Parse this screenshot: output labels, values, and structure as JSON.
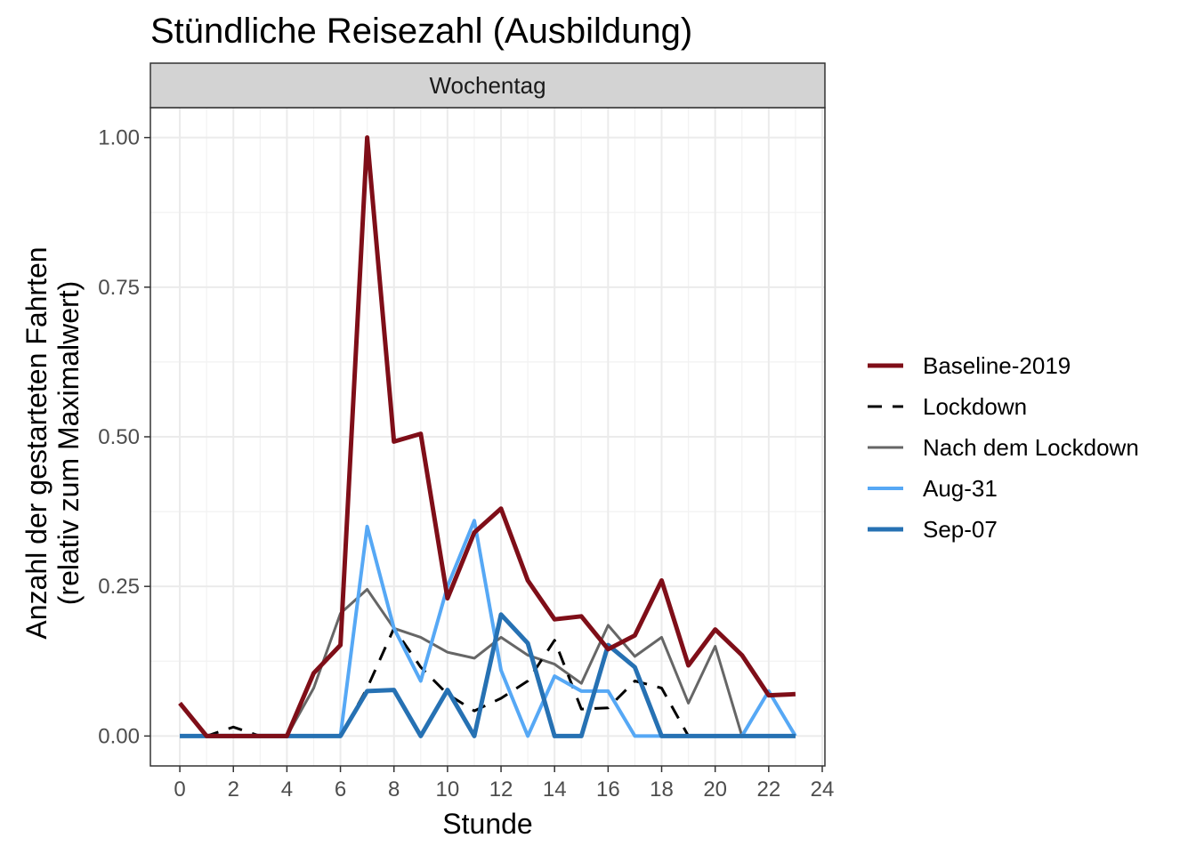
{
  "chart_data": {
    "type": "line",
    "title": "Stündliche Reisezahl (Ausbildung)",
    "facet": "Wochentag",
    "xlabel": "Stunde",
    "ylabel": [
      "Anzahl der gestarteten Fahrten",
      "(relativ zum Maximalwert)"
    ],
    "xlim": [
      -1.1,
      24.1
    ],
    "ylim": [
      -0.05,
      1.05
    ],
    "x_ticks": [
      0,
      2,
      4,
      6,
      8,
      10,
      12,
      14,
      16,
      18,
      20,
      22,
      24
    ],
    "x_tick_labels": [
      "0",
      "2",
      "4",
      "6",
      "8",
      "10",
      "12",
      "14",
      "16",
      "18",
      "20",
      "22",
      "24"
    ],
    "y_ticks": [
      0,
      0.25,
      0.5,
      0.75,
      1.0
    ],
    "y_tick_labels": [
      "0.00",
      "0.25",
      "0.50",
      "0.75",
      "1.00"
    ],
    "grid": true,
    "legend_position": "right",
    "x": [
      0,
      1,
      2,
      3,
      4,
      5,
      6,
      7,
      8,
      9,
      10,
      11,
      12,
      13,
      14,
      15,
      16,
      17,
      18,
      19,
      20,
      21,
      22,
      23
    ],
    "series": [
      {
        "name": "Nach dem Lockdown",
        "color": "#666666",
        "style": "solid",
        "width": 3,
        "values": [
          0,
          0,
          0,
          0,
          0,
          0.08,
          0.205,
          0.245,
          0.18,
          0.165,
          0.14,
          0.13,
          0.165,
          0.135,
          0.12,
          0.088,
          0.185,
          0.133,
          0.165,
          0.055,
          0.15,
          0,
          0,
          0
        ]
      },
      {
        "name": "Lockdown",
        "color": "#000000",
        "style": "dashed",
        "width": 3,
        "values": [
          0,
          0,
          0.015,
          0,
          0,
          0,
          0,
          0.08,
          0.18,
          0.115,
          0.07,
          0.042,
          0.063,
          0.092,
          0.16,
          0.045,
          0.047,
          0.092,
          0.08,
          0,
          0,
          0,
          0,
          0
        ]
      },
      {
        "name": "Aug-31",
        "color": "#56A8F5",
        "style": "solid",
        "width": 4,
        "values": [
          0,
          0,
          0,
          0,
          0,
          0,
          0,
          0.35,
          0.18,
          0.092,
          0.25,
          0.36,
          0.11,
          0,
          0.1,
          0.075,
          0.075,
          0,
          0,
          0,
          0,
          0,
          0.075,
          0
        ]
      },
      {
        "name": "Sep-07",
        "color": "#2671B3",
        "style": "solid",
        "width": 5,
        "values": [
          0,
          0,
          0,
          0,
          0,
          0,
          0,
          0.075,
          0.077,
          0,
          0.077,
          0,
          0.203,
          0.155,
          0,
          0,
          0.152,
          0.115,
          0,
          0,
          0,
          0,
          0,
          0
        ]
      },
      {
        "name": "Baseline-2019",
        "color": "#7F0E18",
        "style": "solid",
        "width": 5,
        "values": [
          0.055,
          0,
          0,
          0,
          0,
          0.105,
          0.152,
          1.0,
          0.492,
          0.505,
          0.23,
          0.34,
          0.38,
          0.26,
          0.195,
          0.2,
          0.145,
          0.168,
          0.26,
          0.118,
          0.178,
          0.135,
          0.068,
          0.07
        ]
      }
    ],
    "legend_order": [
      "Baseline-2019",
      "Lockdown",
      "Nach dem Lockdown",
      "Aug-31",
      "Sep-07"
    ]
  }
}
